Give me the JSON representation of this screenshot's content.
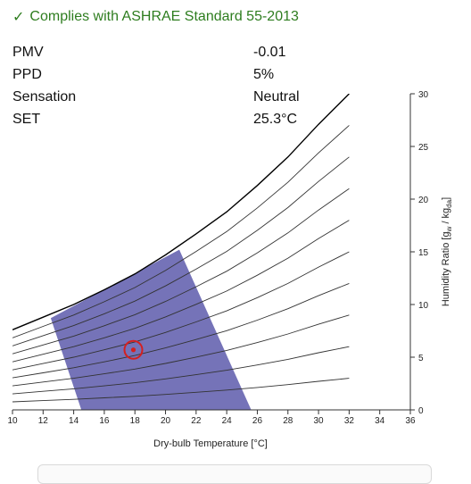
{
  "compliance": {
    "icon": "check-icon",
    "text": "Complies with ASHRAE Standard 55-2013",
    "color": "#2e7d1f"
  },
  "results": [
    {
      "label": "PMV",
      "value": "-0.01"
    },
    {
      "label": "PPD",
      "value": "5%"
    },
    {
      "label": "Sensation",
      "value": "Neutral"
    },
    {
      "label": "SET",
      "value": "25.3°C"
    }
  ],
  "chart_data": {
    "type": "psychrometric",
    "xlabel": "Dry-bulb Temperature [°C]",
    "ylabel_main": "Humidity Ratio [g",
    "ylabel_sub1": "w",
    "ylabel_mid": " / kg",
    "ylabel_sub2": "da",
    "ylabel_end": "]",
    "xlim": [
      10,
      36
    ],
    "ylim": [
      0,
      30
    ],
    "xticks": [
      10,
      12,
      14,
      16,
      18,
      20,
      22,
      24,
      26,
      28,
      30,
      32,
      34,
      36
    ],
    "yticks": [
      0,
      5,
      10,
      15,
      20,
      25,
      30
    ],
    "saturation_curve": [
      [
        10,
        7.6
      ],
      [
        12,
        8.8
      ],
      [
        14,
        10.0
      ],
      [
        16,
        11.4
      ],
      [
        18,
        12.9
      ],
      [
        20,
        14.7
      ],
      [
        22,
        16.7
      ],
      [
        24,
        18.8
      ],
      [
        26,
        21.3
      ],
      [
        28,
        24.0
      ],
      [
        30,
        27.1
      ],
      [
        32,
        30.0
      ]
    ],
    "rh_curves": [
      0.9,
      0.8,
      0.7,
      0.6,
      0.5,
      0.4,
      0.3,
      0.2,
      0.1
    ],
    "comfort_zone": [
      [
        12.5,
        8.7
      ],
      [
        20.9,
        15.2
      ],
      [
        25.6,
        0
      ],
      [
        14.5,
        0
      ]
    ],
    "comfort_zone_color": "#6e6cb4",
    "current_point": {
      "x": 17.9,
      "y": 5.7
    },
    "point_color": "#d42020"
  }
}
